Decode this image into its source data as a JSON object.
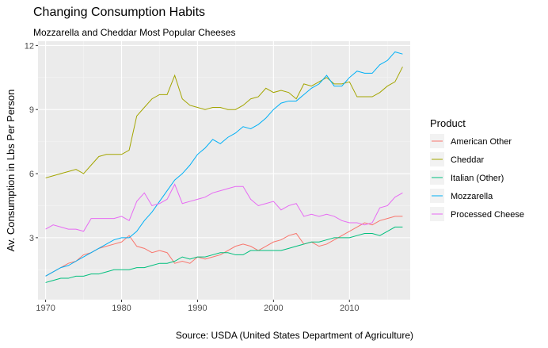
{
  "chart_data": {
    "type": "line",
    "title": "Changing Consumption Habits",
    "subtitle": "Mozzarella and Cheddar Most Popular Cheeses",
    "caption": "Source: USDA (United States Department of Agriculture)",
    "xlabel": "",
    "ylabel": "Av. Consumption in Lbs Per Person",
    "xlim": [
      1969,
      2018
    ],
    "ylim": [
      0.1,
      12.2
    ],
    "x_ticks": [
      1970,
      1980,
      1990,
      2000,
      2010
    ],
    "y_ticks": [
      3,
      6,
      9,
      12
    ],
    "grid": true,
    "legend_title": "Product",
    "legend_position": "right",
    "x": [
      1970,
      1971,
      1972,
      1973,
      1974,
      1975,
      1976,
      1977,
      1978,
      1979,
      1980,
      1981,
      1982,
      1983,
      1984,
      1985,
      1986,
      1987,
      1988,
      1989,
      1990,
      1991,
      1992,
      1993,
      1994,
      1995,
      1996,
      1997,
      1998,
      1999,
      2000,
      2001,
      2002,
      2003,
      2004,
      2005,
      2006,
      2007,
      2008,
      2009,
      2010,
      2011,
      2012,
      2013,
      2014,
      2015,
      2016,
      2017
    ],
    "series": [
      {
        "name": "American Other",
        "color": "#F8766D",
        "values": [
          1.2,
          1.4,
          1.6,
          1.8,
          1.9,
          2.2,
          2.3,
          2.5,
          2.6,
          2.7,
          2.8,
          3.1,
          2.6,
          2.5,
          2.3,
          2.4,
          2.3,
          1.8,
          1.9,
          1.8,
          2.1,
          2.0,
          2.1,
          2.2,
          2.4,
          2.6,
          2.7,
          2.6,
          2.4,
          2.6,
          2.8,
          2.9,
          3.1,
          3.2,
          2.7,
          2.8,
          2.6,
          2.7,
          2.9,
          3.1,
          3.3,
          3.5,
          3.7,
          3.6,
          3.8,
          3.9,
          4.0,
          4.0
        ]
      },
      {
        "name": "Cheddar",
        "color": "#A3A500",
        "values": [
          5.8,
          5.9,
          6.0,
          6.1,
          6.2,
          6.0,
          6.4,
          6.8,
          6.9,
          6.9,
          6.9,
          7.1,
          8.7,
          9.1,
          9.5,
          9.7,
          9.7,
          10.6,
          9.5,
          9.2,
          9.1,
          9.0,
          9.1,
          9.1,
          9.0,
          9.0,
          9.2,
          9.5,
          9.6,
          10.0,
          9.8,
          9.9,
          9.8,
          9.5,
          10.2,
          10.1,
          10.3,
          10.5,
          10.2,
          10.2,
          10.3,
          9.6,
          9.6,
          9.6,
          9.8,
          10.1,
          10.3,
          11.0
        ]
      },
      {
        "name": "Italian (Other)",
        "color": "#00BF7D",
        "values": [
          0.9,
          1.0,
          1.1,
          1.1,
          1.2,
          1.2,
          1.3,
          1.3,
          1.4,
          1.5,
          1.5,
          1.5,
          1.6,
          1.6,
          1.7,
          1.8,
          1.8,
          1.9,
          2.1,
          2.0,
          2.1,
          2.1,
          2.2,
          2.3,
          2.3,
          2.2,
          2.2,
          2.4,
          2.4,
          2.4,
          2.4,
          2.4,
          2.5,
          2.6,
          2.7,
          2.8,
          2.8,
          2.9,
          3.0,
          3.0,
          3.0,
          3.1,
          3.2,
          3.2,
          3.1,
          3.3,
          3.5,
          3.5
        ]
      },
      {
        "name": "Mozzarella",
        "color": "#00B0F6",
        "values": [
          1.2,
          1.4,
          1.6,
          1.7,
          1.9,
          2.1,
          2.3,
          2.5,
          2.7,
          2.9,
          3.0,
          3.0,
          3.3,
          3.8,
          4.2,
          4.7,
          5.2,
          5.7,
          6.0,
          6.4,
          6.9,
          7.2,
          7.6,
          7.4,
          7.7,
          7.9,
          8.2,
          8.1,
          8.3,
          8.6,
          9.0,
          9.3,
          9.4,
          9.4,
          9.7,
          10.0,
          10.2,
          10.6,
          10.1,
          10.1,
          10.5,
          10.8,
          10.7,
          10.7,
          11.1,
          11.3,
          11.7,
          11.6
        ]
      },
      {
        "name": "Processed Cheese",
        "color": "#E76BF3",
        "values": [
          3.4,
          3.6,
          3.5,
          3.4,
          3.4,
          3.3,
          3.9,
          3.9,
          3.9,
          3.9,
          4.0,
          3.8,
          4.7,
          5.1,
          4.5,
          4.6,
          4.8,
          5.5,
          4.6,
          4.7,
          4.8,
          4.9,
          5.1,
          5.2,
          5.3,
          5.4,
          5.4,
          4.8,
          4.5,
          4.6,
          4.7,
          4.3,
          4.5,
          4.6,
          4.0,
          4.1,
          4.0,
          4.1,
          4.0,
          3.8,
          3.7,
          3.7,
          3.6,
          3.7,
          4.4,
          4.5,
          4.9,
          5.1
        ]
      }
    ]
  }
}
